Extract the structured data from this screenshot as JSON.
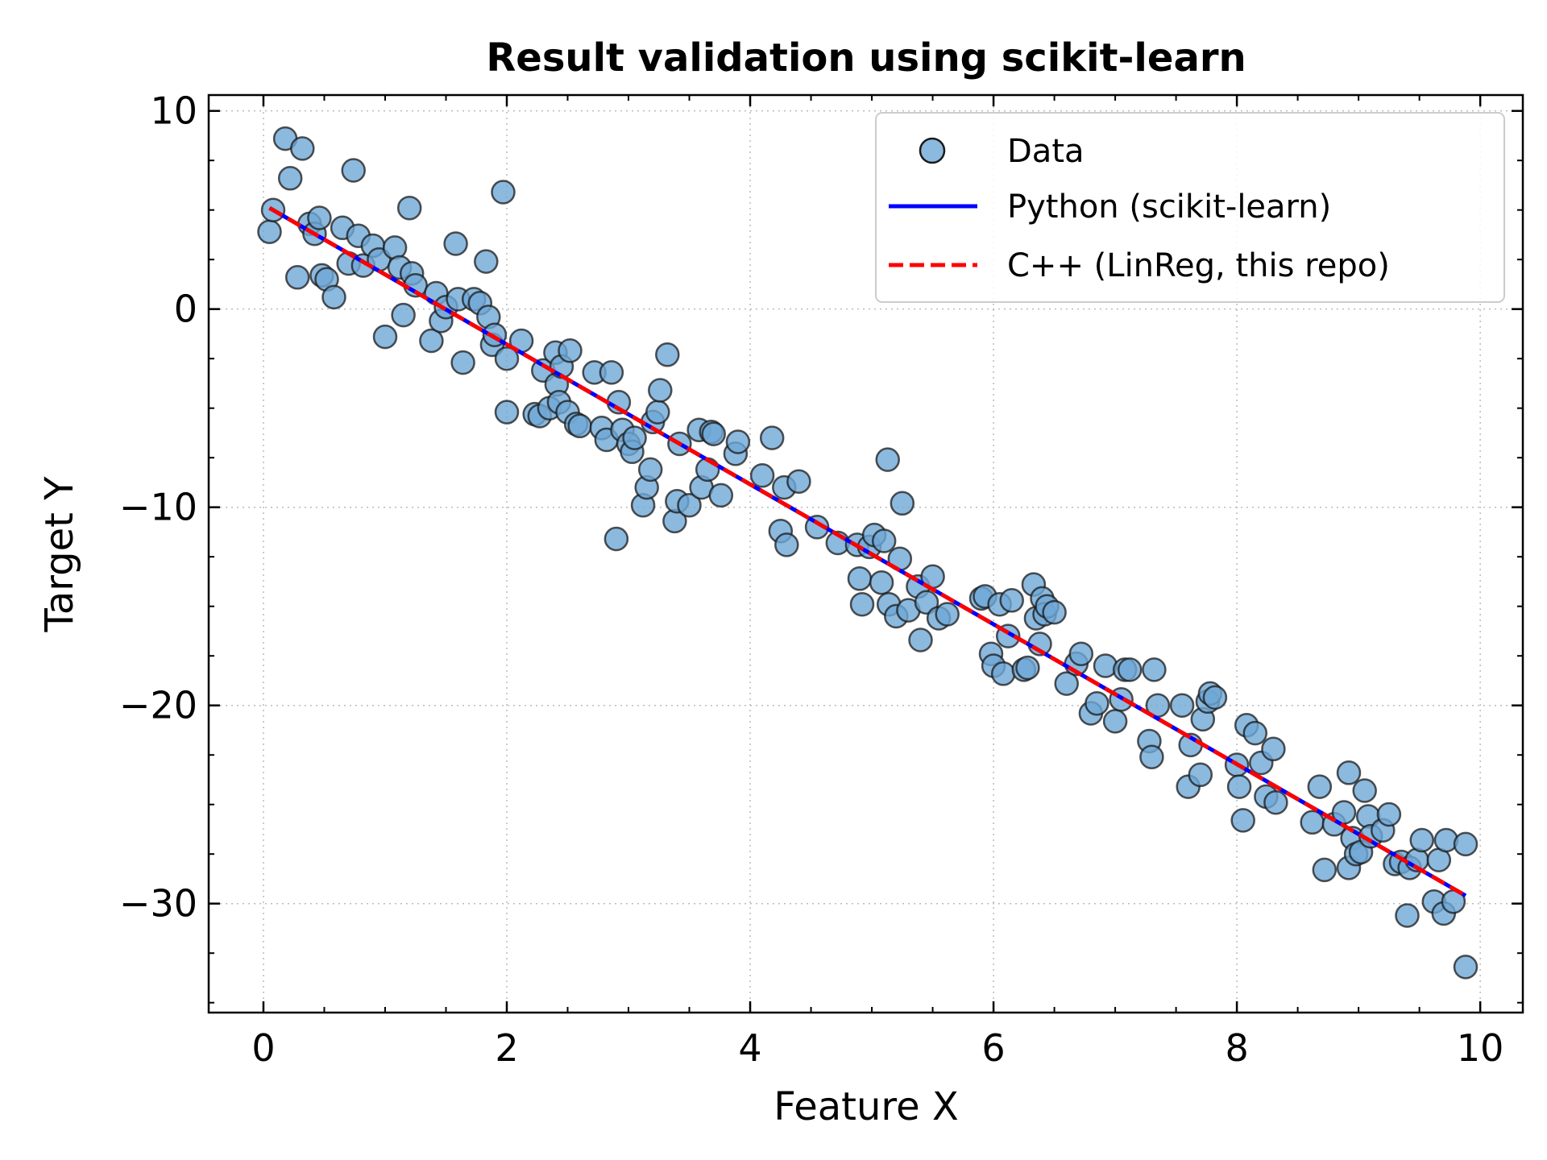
{
  "chart_data": {
    "type": "scatter",
    "title": "Result validation using scikit-learn",
    "xlabel": "Feature X",
    "ylabel": "Target Y",
    "xlim": [
      -0.45,
      10.35
    ],
    "ylim": [
      -35.5,
      10.8
    ],
    "xticks": [
      0,
      2,
      4,
      6,
      8,
      10
    ],
    "xtick_labels": [
      "0",
      "2",
      "4",
      "6",
      "8",
      "10"
    ],
    "yticks": [
      10,
      0,
      -10,
      -20,
      -30
    ],
    "ytick_labels": [
      "10",
      "0",
      "−10",
      "−20",
      "−30"
    ],
    "grid": true,
    "legend_position": "top-right",
    "series": [
      {
        "name": "Data",
        "type": "scatter",
        "color": "#6fa8d6",
        "edge_color": "#1a1a1a",
        "points": [
          [
            0.05,
            3.9
          ],
          [
            0.08,
            5.0
          ],
          [
            0.18,
            8.6
          ],
          [
            0.22,
            6.6
          ],
          [
            0.28,
            1.6
          ],
          [
            0.32,
            8.1
          ],
          [
            0.38,
            4.3
          ],
          [
            0.42,
            3.8
          ],
          [
            0.46,
            4.6
          ],
          [
            0.48,
            1.7
          ],
          [
            0.52,
            1.5
          ],
          [
            0.58,
            0.6
          ],
          [
            0.65,
            4.1
          ],
          [
            0.7,
            2.3
          ],
          [
            0.74,
            7.0
          ],
          [
            0.78,
            3.7
          ],
          [
            0.82,
            2.2
          ],
          [
            0.9,
            3.2
          ],
          [
            0.95,
            2.5
          ],
          [
            1.0,
            -1.4
          ],
          [
            1.08,
            3.1
          ],
          [
            1.12,
            2.1
          ],
          [
            1.15,
            -0.3
          ],
          [
            1.2,
            5.1
          ],
          [
            1.22,
            1.8
          ],
          [
            1.25,
            1.2
          ],
          [
            1.38,
            -1.6
          ],
          [
            1.42,
            0.8
          ],
          [
            1.46,
            -0.6
          ],
          [
            1.5,
            0.1
          ],
          [
            1.58,
            3.3
          ],
          [
            1.6,
            0.5
          ],
          [
            1.64,
            -2.7
          ],
          [
            1.73,
            0.5
          ],
          [
            1.78,
            0.3
          ],
          [
            1.83,
            2.4
          ],
          [
            1.85,
            -0.4
          ],
          [
            1.88,
            -1.8
          ],
          [
            1.9,
            -1.3
          ],
          [
            1.97,
            5.9
          ],
          [
            2.0,
            -5.2
          ],
          [
            2.0,
            -2.5
          ],
          [
            2.12,
            -1.6
          ],
          [
            2.23,
            -5.3
          ],
          [
            2.27,
            -5.4
          ],
          [
            2.3,
            -3.1
          ],
          [
            2.35,
            -5.0
          ],
          [
            2.4,
            -2.2
          ],
          [
            2.41,
            -3.8
          ],
          [
            2.43,
            -4.7
          ],
          [
            2.45,
            -2.9
          ],
          [
            2.5,
            -5.2
          ],
          [
            2.52,
            -2.1
          ],
          [
            2.57,
            -5.8
          ],
          [
            2.6,
            -5.9
          ],
          [
            2.72,
            -3.2
          ],
          [
            2.78,
            -6.0
          ],
          [
            2.82,
            -6.6
          ],
          [
            2.86,
            -3.2
          ],
          [
            2.9,
            -11.6
          ],
          [
            2.92,
            -4.7
          ],
          [
            2.95,
            -6.1
          ],
          [
            3.0,
            -6.8
          ],
          [
            3.03,
            -7.2
          ],
          [
            3.05,
            -6.5
          ],
          [
            3.12,
            -9.9
          ],
          [
            3.15,
            -9.0
          ],
          [
            3.18,
            -8.1
          ],
          [
            3.2,
            -5.7
          ],
          [
            3.24,
            -5.2
          ],
          [
            3.26,
            -4.1
          ],
          [
            3.32,
            -2.3
          ],
          [
            3.38,
            -10.7
          ],
          [
            3.4,
            -9.7
          ],
          [
            3.42,
            -6.8
          ],
          [
            3.5,
            -9.9
          ],
          [
            3.58,
            -6.1
          ],
          [
            3.6,
            -9.0
          ],
          [
            3.65,
            -8.1
          ],
          [
            3.68,
            -6.2
          ],
          [
            3.7,
            -6.3
          ],
          [
            3.76,
            -9.4
          ],
          [
            3.88,
            -7.3
          ],
          [
            3.9,
            -6.7
          ],
          [
            4.1,
            -8.4
          ],
          [
            4.18,
            -6.5
          ],
          [
            4.25,
            -11.2
          ],
          [
            4.28,
            -9.0
          ],
          [
            4.3,
            -11.9
          ],
          [
            4.4,
            -8.7
          ],
          [
            4.55,
            -11.0
          ],
          [
            4.72,
            -11.8
          ],
          [
            4.88,
            -11.9
          ],
          [
            4.9,
            -13.6
          ],
          [
            4.92,
            -14.9
          ],
          [
            4.98,
            -12.0
          ],
          [
            5.02,
            -11.4
          ],
          [
            5.08,
            -13.8
          ],
          [
            5.1,
            -11.7
          ],
          [
            5.13,
            -7.6
          ],
          [
            5.14,
            -14.9
          ],
          [
            5.2,
            -15.5
          ],
          [
            5.23,
            -12.6
          ],
          [
            5.25,
            -9.8
          ],
          [
            5.3,
            -15.2
          ],
          [
            5.38,
            -14.0
          ],
          [
            5.4,
            -16.7
          ],
          [
            5.45,
            -14.8
          ],
          [
            5.5,
            -13.5
          ],
          [
            5.55,
            -15.6
          ],
          [
            5.62,
            -15.4
          ],
          [
            5.9,
            -14.6
          ],
          [
            5.93,
            -14.5
          ],
          [
            5.98,
            -17.4
          ],
          [
            6.0,
            -18.0
          ],
          [
            6.05,
            -14.9
          ],
          [
            6.08,
            -18.4
          ],
          [
            6.12,
            -16.5
          ],
          [
            6.15,
            -14.7
          ],
          [
            6.25,
            -18.2
          ],
          [
            6.28,
            -18.1
          ],
          [
            6.33,
            -13.9
          ],
          [
            6.35,
            -15.6
          ],
          [
            6.38,
            -16.9
          ],
          [
            6.4,
            -14.6
          ],
          [
            6.42,
            -15.4
          ],
          [
            6.44,
            -15.0
          ],
          [
            6.5,
            -15.3
          ],
          [
            6.6,
            -18.9
          ],
          [
            6.68,
            -17.9
          ],
          [
            6.72,
            -17.4
          ],
          [
            6.8,
            -20.4
          ],
          [
            6.85,
            -19.9
          ],
          [
            6.92,
            -18.0
          ],
          [
            7.0,
            -20.8
          ],
          [
            7.05,
            -19.7
          ],
          [
            7.08,
            -18.2
          ],
          [
            7.12,
            -18.2
          ],
          [
            7.28,
            -21.8
          ],
          [
            7.3,
            -22.6
          ],
          [
            7.32,
            -18.2
          ],
          [
            7.35,
            -20.0
          ],
          [
            7.55,
            -20.0
          ],
          [
            7.6,
            -24.1
          ],
          [
            7.62,
            -22.0
          ],
          [
            7.7,
            -23.5
          ],
          [
            7.72,
            -20.7
          ],
          [
            7.76,
            -19.8
          ],
          [
            7.78,
            -19.4
          ],
          [
            7.82,
            -19.6
          ],
          [
            8.0,
            -23.0
          ],
          [
            8.02,
            -24.1
          ],
          [
            8.05,
            -25.8
          ],
          [
            8.08,
            -21.0
          ],
          [
            8.15,
            -21.4
          ],
          [
            8.2,
            -22.9
          ],
          [
            8.24,
            -24.6
          ],
          [
            8.3,
            -22.2
          ],
          [
            8.32,
            -24.9
          ],
          [
            8.62,
            -25.9
          ],
          [
            8.68,
            -24.1
          ],
          [
            8.72,
            -28.3
          ],
          [
            8.8,
            -26.0
          ],
          [
            8.88,
            -25.4
          ],
          [
            8.92,
            -23.4
          ],
          [
            8.92,
            -28.2
          ],
          [
            8.95,
            -26.7
          ],
          [
            8.98,
            -27.5
          ],
          [
            9.02,
            -27.4
          ],
          [
            9.05,
            -24.3
          ],
          [
            9.08,
            -25.6
          ],
          [
            9.1,
            -26.6
          ],
          [
            9.2,
            -26.3
          ],
          [
            9.25,
            -25.5
          ],
          [
            9.3,
            -28.0
          ],
          [
            9.35,
            -27.9
          ],
          [
            9.4,
            -30.6
          ],
          [
            9.42,
            -28.2
          ],
          [
            9.48,
            -27.8
          ],
          [
            9.52,
            -26.8
          ],
          [
            9.62,
            -29.9
          ],
          [
            9.66,
            -27.8
          ],
          [
            9.7,
            -30.5
          ],
          [
            9.72,
            -26.8
          ],
          [
            9.78,
            -29.9
          ],
          [
            9.88,
            -27.0
          ],
          [
            9.88,
            -33.2
          ]
        ]
      },
      {
        "name": "Python (scikit-learn)",
        "type": "line",
        "color": "#0000ff",
        "x": [
          0.05,
          9.88
        ],
        "y": [
          5.1,
          -29.6
        ]
      },
      {
        "name": "C++ (LinReg, this repo)",
        "type": "line",
        "style": "dashed",
        "color": "#ff0000",
        "x": [
          0.05,
          9.88
        ],
        "y": [
          5.1,
          -29.6
        ]
      }
    ]
  }
}
